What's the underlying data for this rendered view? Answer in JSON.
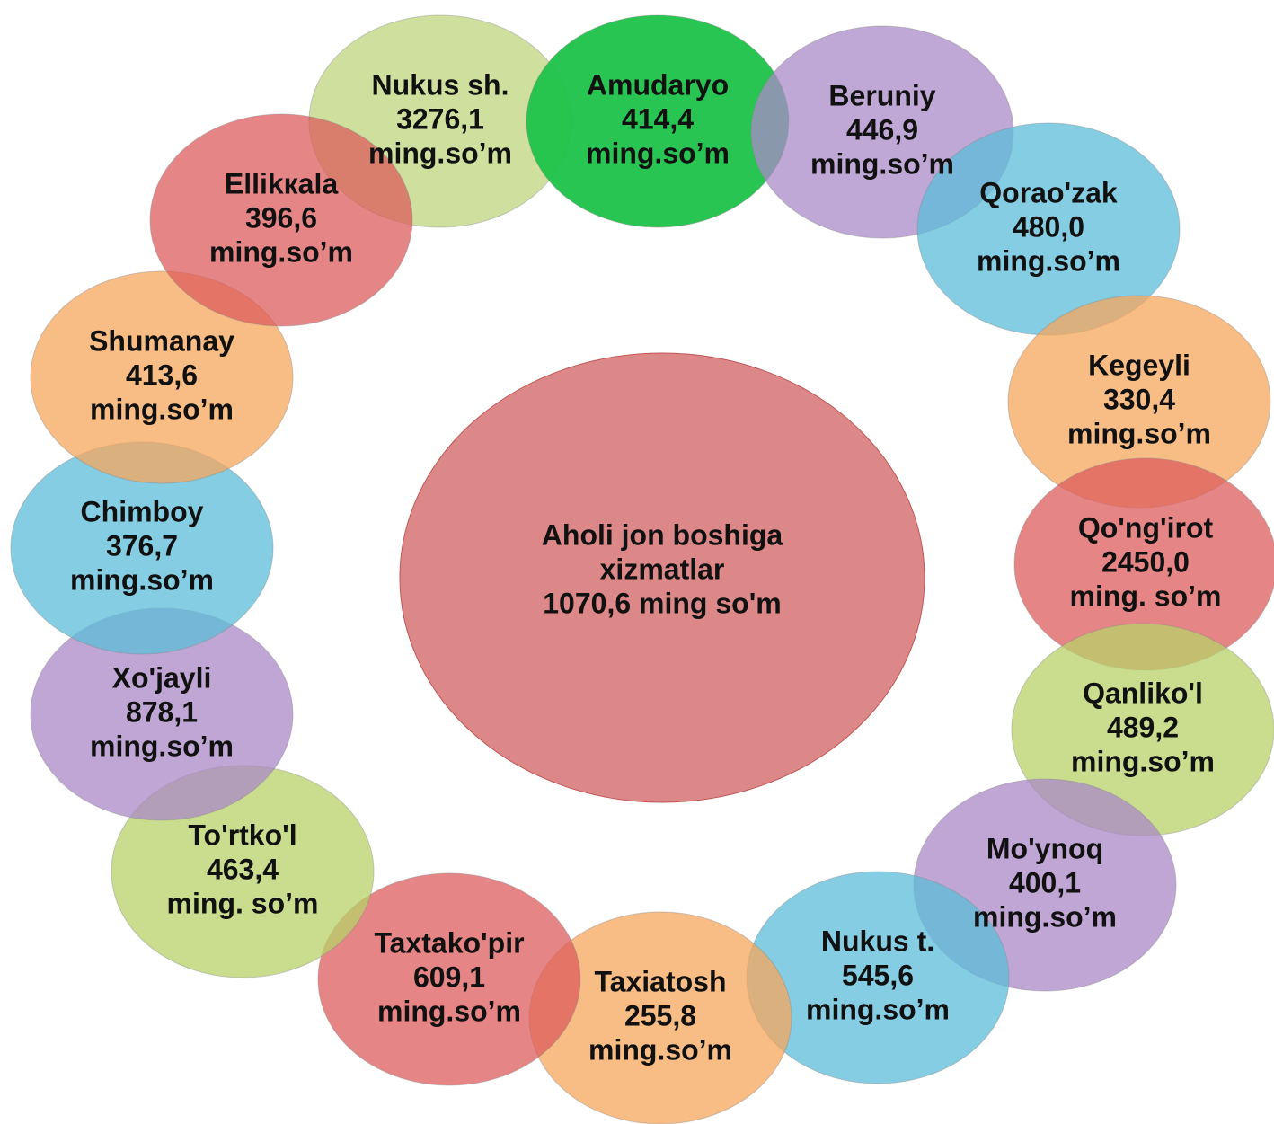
{
  "center": {
    "lines": [
      "Aholi jon boshiga",
      "xizmatlar",
      "1070,6 ming so'm"
    ],
    "color": "#d46a6a"
  },
  "nodes": [
    {
      "name": "Nukus  sh.",
      "value": "3276,1",
      "unit": "ming.so’m",
      "color": "#bfd67e"
    },
    {
      "name": "Amudaryo",
      "value": "414,4",
      "unit": "ming.so’m",
      "color": "#1ec24a"
    },
    {
      "name": "Beruniy",
      "value": "446,9",
      "unit": "ming.so’m",
      "color": "#a98ac8"
    },
    {
      "name": "Qorao'zak",
      "value": "480,0",
      "unit": "ming.so’m",
      "color": "#5cbcd8"
    },
    {
      "name": "Kegeyli",
      "value": "330,4",
      "unit": "ming.so’m",
      "color": "#f5a65c"
    },
    {
      "name": "Qo'ng'irot",
      "value": "2450,0",
      "unit": "ming. so’m",
      "color": "#dc5c5c"
    },
    {
      "name": "Qanliko'l",
      "value": "489,2",
      "unit": "ming.so’m",
      "color": "#b8d16a"
    },
    {
      "name": "Mo'ynoq",
      "value": "400,1",
      "unit": "ming.so’m",
      "color": "#a988c6"
    },
    {
      "name": "Nukus t.",
      "value": "545,6",
      "unit": "ming.so’m",
      "color": "#5cbcd8"
    },
    {
      "name": "Taxiatosh",
      "value": "255,8",
      "unit": "ming.so’m",
      "color": "#f5a65c"
    },
    {
      "name": "Taxtako'pir",
      "value": "609,1",
      "unit": "ming.so’m",
      "color": "#dc5c5c"
    },
    {
      "name": "To'rtko'l",
      "value": "463,4",
      "unit": "ming. so’m",
      "color": "#b8d16a"
    },
    {
      "name": "Xo'jayli",
      "value": "878,1",
      "unit": "ming.so’m",
      "color": "#a988c6"
    },
    {
      "name": "Chimboy",
      "value": "376,7",
      "unit": "ming.so’m",
      "color": "#5cbcd8"
    },
    {
      "name": "Shumanay",
      "value": "413,6",
      "unit": "ming.so’m",
      "color": "#f5a65c"
    },
    {
      "name": "Ellikкala",
      "value": "396,6",
      "unit": "ming.so’m",
      "color": "#dc5c5c"
    }
  ]
}
